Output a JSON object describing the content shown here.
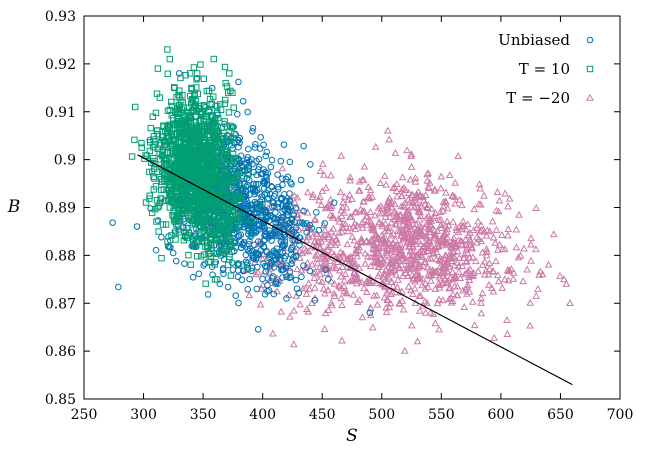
{
  "chart_data": {
    "type": "scatter",
    "xlabel": "S",
    "ylabel": "B",
    "xlim": [
      250,
      700
    ],
    "ylim": [
      0.85,
      0.93
    ],
    "x_ticks": [
      250,
      300,
      350,
      400,
      450,
      500,
      550,
      600,
      650,
      700
    ],
    "x_tick_labels": [
      "250",
      "300",
      "350",
      "400",
      "450",
      "500",
      "550",
      "600",
      "650",
      "700"
    ],
    "y_ticks": [
      0.85,
      0.86,
      0.87,
      0.88,
      0.89,
      0.9,
      0.91,
      0.92,
      0.93
    ],
    "y_tick_labels": [
      "0.85",
      "0.86",
      "0.87",
      "0.88",
      "0.89",
      "0.9",
      "0.91",
      "0.92",
      "0.93"
    ],
    "grid": false,
    "legend_position": "top-right",
    "series": [
      {
        "name": "Unbiased",
        "marker": "circle",
        "color": "#0072b2",
        "clusters": [
          {
            "cx": 365,
            "cy": 0.893,
            "sx": 22,
            "sy": 0.007,
            "n": 700
          },
          {
            "cx": 405,
            "cy": 0.884,
            "sx": 18,
            "sy": 0.006,
            "n": 320
          }
        ],
        "points": [
          [
            330,
            0.918
          ],
          [
            345,
            0.917
          ],
          [
            440,
            0.899
          ],
          [
            445,
            0.889
          ],
          [
            460,
            0.891
          ],
          [
            455,
            0.875
          ],
          [
            490,
            0.868
          ],
          [
            420,
            0.871
          ],
          [
            395,
            0.873
          ]
        ]
      },
      {
        "name": "T = 10",
        "marker": "square",
        "color": "#009e73",
        "clusters": [
          {
            "cx": 340,
            "cy": 0.9,
            "sx": 15,
            "sy": 0.007,
            "n": 1000
          },
          {
            "cx": 362,
            "cy": 0.888,
            "sx": 12,
            "sy": 0.005,
            "n": 220
          }
        ],
        "points": [
          [
            293,
            0.911
          ],
          [
            312,
            0.919
          ],
          [
            320,
            0.923
          ],
          [
            322,
            0.921
          ],
          [
            345,
            0.918
          ],
          [
            372,
            0.918
          ],
          [
            371,
            0.914
          ],
          [
            322,
            0.89
          ],
          [
            335,
            0.884
          ],
          [
            360,
            0.875
          ]
        ]
      },
      {
        "name": "T = −20",
        "marker": "triangle",
        "color": "#cc79a7",
        "clusters": [
          {
            "cx": 525,
            "cy": 0.883,
            "sx": 28,
            "sy": 0.007,
            "n": 650
          },
          {
            "cx": 455,
            "cy": 0.881,
            "sx": 30,
            "sy": 0.007,
            "n": 330
          },
          {
            "cx": 580,
            "cy": 0.879,
            "sx": 25,
            "sy": 0.006,
            "n": 160
          }
        ],
        "points": [
          [
            505,
            0.906
          ],
          [
            622,
            0.877
          ],
          [
            635,
            0.876
          ],
          [
            655,
            0.874
          ],
          [
            658,
            0.87
          ],
          [
            640,
            0.878
          ],
          [
            530,
            0.862
          ],
          [
            460,
            0.872
          ]
        ]
      }
    ],
    "fit_line": {
      "x": [
        295,
        660
      ],
      "y": [
        0.901,
        0.853
      ],
      "color": "#000000"
    }
  }
}
